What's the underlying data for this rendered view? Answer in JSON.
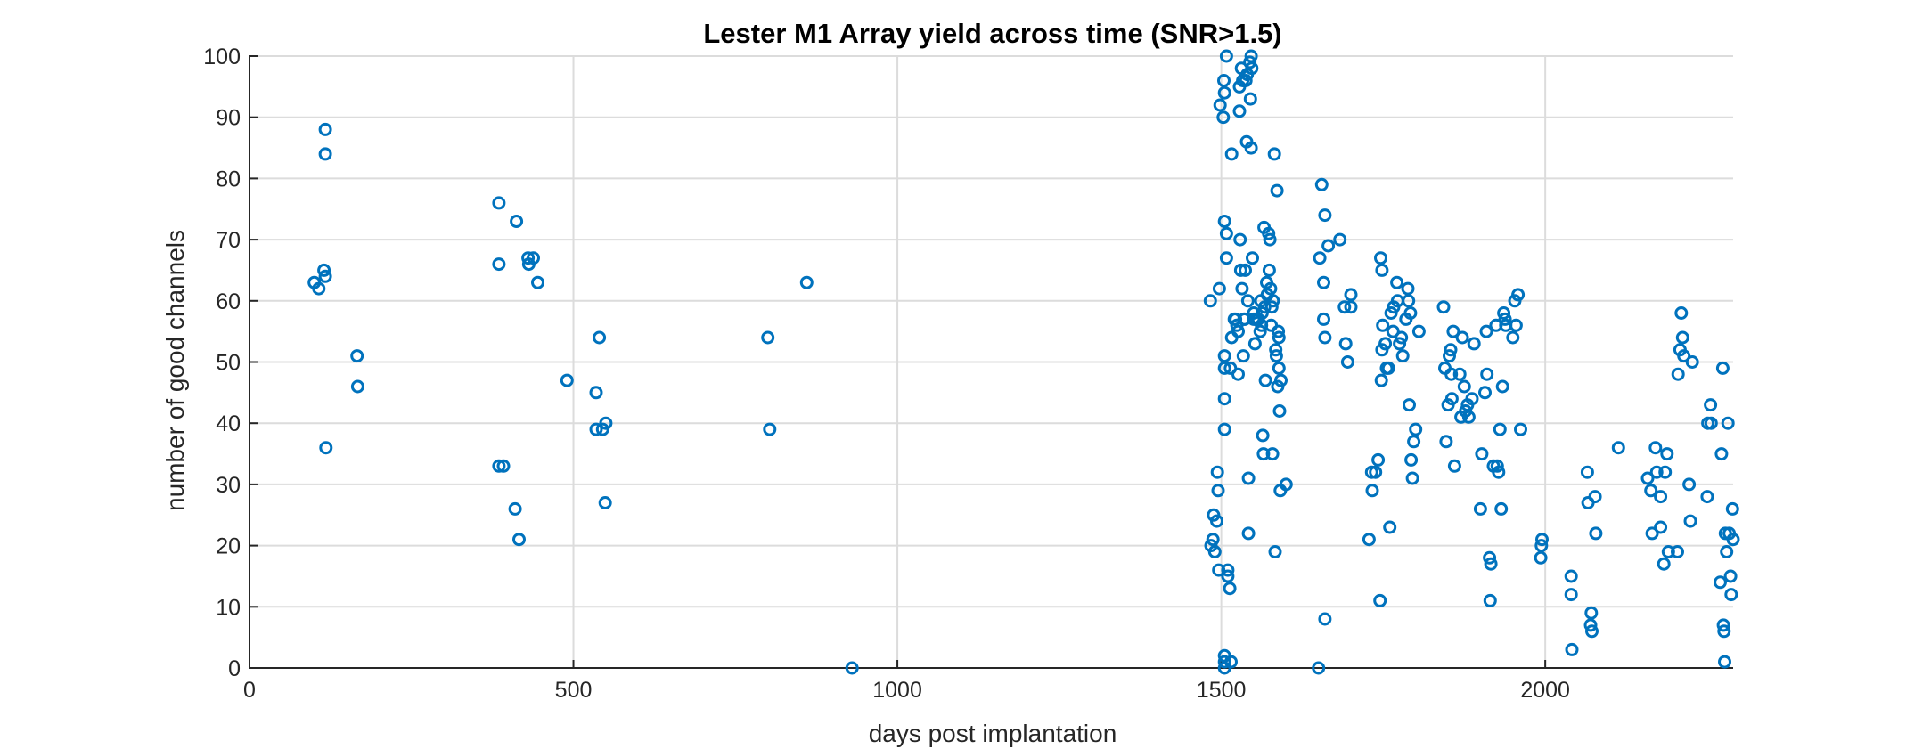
{
  "chart_data": {
    "type": "scatter",
    "title": "Lester M1 Array yield across time (SNR>1.5)",
    "xlabel": "days post implantation",
    "ylabel": "number of good channels",
    "xlim": [
      0,
      2290
    ],
    "ylim": [
      0,
      100
    ],
    "xticks": [
      0,
      500,
      1000,
      1500,
      2000
    ],
    "yticks": [
      0,
      10,
      20,
      30,
      40,
      50,
      60,
      70,
      80,
      90,
      100
    ],
    "grid": true,
    "legend": "none",
    "marker": "circle",
    "series": [
      {
        "color": "#0072BD",
        "points": [
          [
            100,
            63
          ],
          [
            107,
            62
          ],
          [
            115,
            65
          ],
          [
            117,
            64
          ],
          [
            117,
            88
          ],
          [
            117,
            84
          ],
          [
            118,
            36
          ],
          [
            166,
            51
          ],
          [
            167,
            46
          ],
          [
            385,
            76
          ],
          [
            385,
            66
          ],
          [
            385,
            33
          ],
          [
            392,
            33
          ],
          [
            410,
            26
          ],
          [
            412,
            73
          ],
          [
            416,
            21
          ],
          [
            430,
            67
          ],
          [
            431,
            66
          ],
          [
            438,
            67
          ],
          [
            445,
            63
          ],
          [
            490,
            47
          ],
          [
            535,
            45
          ],
          [
            535,
            39
          ],
          [
            540,
            54
          ],
          [
            545,
            39
          ],
          [
            549,
            27
          ],
          [
            550,
            40
          ],
          [
            800,
            54
          ],
          [
            803,
            39
          ],
          [
            860,
            63
          ],
          [
            930,
            0
          ],
          [
            1483,
            60
          ],
          [
            1484,
            20
          ],
          [
            1487,
            21
          ],
          [
            1488,
            25
          ],
          [
            1490,
            19
          ],
          [
            1493,
            24
          ],
          [
            1494,
            32
          ],
          [
            1495,
            29
          ],
          [
            1496,
            16
          ],
          [
            1497,
            62
          ],
          [
            1498,
            92
          ],
          [
            1503,
            90
          ],
          [
            1504,
            96
          ],
          [
            1505,
            94
          ],
          [
            1505,
            73
          ],
          [
            1505,
            39
          ],
          [
            1505,
            44
          ],
          [
            1505,
            49
          ],
          [
            1505,
            51
          ],
          [
            1505,
            2
          ],
          [
            1505,
            1
          ],
          [
            1505,
            0
          ],
          [
            1508,
            100
          ],
          [
            1508,
            71
          ],
          [
            1508,
            67
          ],
          [
            1510,
            16
          ],
          [
            1510,
            15
          ],
          [
            1513,
            13
          ],
          [
            1514,
            49
          ],
          [
            1515,
            1
          ],
          [
            1516,
            54
          ],
          [
            1516,
            84
          ],
          [
            1520,
            57
          ],
          [
            1522,
            57
          ],
          [
            1524,
            56
          ],
          [
            1526,
            48
          ],
          [
            1526,
            55
          ],
          [
            1528,
            91
          ],
          [
            1528,
            95
          ],
          [
            1529,
            70
          ],
          [
            1530,
            65
          ],
          [
            1531,
            98
          ],
          [
            1532,
            62
          ],
          [
            1533,
            96
          ],
          [
            1534,
            51
          ],
          [
            1535,
            57
          ],
          [
            1536,
            57
          ],
          [
            1537,
            65
          ],
          [
            1538,
            96
          ],
          [
            1539,
            86
          ],
          [
            1540,
            97
          ],
          [
            1541,
            60
          ],
          [
            1542,
            31
          ],
          [
            1542,
            22
          ],
          [
            1544,
            99
          ],
          [
            1545,
            93
          ],
          [
            1546,
            85
          ],
          [
            1546,
            100
          ],
          [
            1547,
            98
          ],
          [
            1548,
            67
          ],
          [
            1550,
            58
          ],
          [
            1550,
            57
          ],
          [
            1552,
            53
          ],
          [
            1553,
            57
          ],
          [
            1555,
            57
          ],
          [
            1557,
            57
          ],
          [
            1560,
            55
          ],
          [
            1561,
            60
          ],
          [
            1562,
            56
          ],
          [
            1563,
            58
          ],
          [
            1564,
            38
          ],
          [
            1565,
            35
          ],
          [
            1566,
            72
          ],
          [
            1567,
            59
          ],
          [
            1568,
            47
          ],
          [
            1570,
            63
          ],
          [
            1571,
            61
          ],
          [
            1573,
            71
          ],
          [
            1574,
            65
          ],
          [
            1575,
            70
          ],
          [
            1576,
            62
          ],
          [
            1577,
            56
          ],
          [
            1578,
            59
          ],
          [
            1579,
            35
          ],
          [
            1580,
            60
          ],
          [
            1582,
            84
          ],
          [
            1583,
            19
          ],
          [
            1584,
            52
          ],
          [
            1585,
            51
          ],
          [
            1586,
            78
          ],
          [
            1587,
            46
          ],
          [
            1588,
            55
          ],
          [
            1589,
            54
          ],
          [
            1589,
            49
          ],
          [
            1590,
            42
          ],
          [
            1591,
            29
          ],
          [
            1592,
            47
          ],
          [
            1600,
            30
          ],
          [
            1650,
            0
          ],
          [
            1652,
            67
          ],
          [
            1655,
            79
          ],
          [
            1658,
            57
          ],
          [
            1658,
            63
          ],
          [
            1660,
            74
          ],
          [
            1660,
            8
          ],
          [
            1660,
            54
          ],
          [
            1665,
            69
          ],
          [
            1683,
            70
          ],
          [
            1690,
            59
          ],
          [
            1692,
            53
          ],
          [
            1695,
            50
          ],
          [
            1700,
            59
          ],
          [
            1700,
            61
          ],
          [
            1728,
            21
          ],
          [
            1732,
            32
          ],
          [
            1733,
            29
          ],
          [
            1738,
            32
          ],
          [
            1742,
            34
          ],
          [
            1745,
            11
          ],
          [
            1746,
            67
          ],
          [
            1747,
            47
          ],
          [
            1748,
            65
          ],
          [
            1748,
            52
          ],
          [
            1749,
            56
          ],
          [
            1753,
            53
          ],
          [
            1755,
            49
          ],
          [
            1758,
            49
          ],
          [
            1760,
            23
          ],
          [
            1762,
            58
          ],
          [
            1765,
            55
          ],
          [
            1766,
            59
          ],
          [
            1771,
            63
          ],
          [
            1772,
            60
          ],
          [
            1775,
            53
          ],
          [
            1778,
            54
          ],
          [
            1780,
            51
          ],
          [
            1785,
            57
          ],
          [
            1788,
            62
          ],
          [
            1789,
            60
          ],
          [
            1790,
            43
          ],
          [
            1792,
            58
          ],
          [
            1793,
            34
          ],
          [
            1795,
            31
          ],
          [
            1797,
            37
          ],
          [
            1800,
            39
          ],
          [
            1805,
            55
          ],
          [
            1843,
            59
          ],
          [
            1845,
            49
          ],
          [
            1847,
            37
          ],
          [
            1850,
            43
          ],
          [
            1852,
            51
          ],
          [
            1854,
            52
          ],
          [
            1855,
            48
          ],
          [
            1856,
            44
          ],
          [
            1858,
            55
          ],
          [
            1860,
            33
          ],
          [
            1868,
            48
          ],
          [
            1870,
            41
          ],
          [
            1872,
            54
          ],
          [
            1875,
            46
          ],
          [
            1877,
            42
          ],
          [
            1880,
            43
          ],
          [
            1882,
            41
          ],
          [
            1887,
            44
          ],
          [
            1890,
            53
          ],
          [
            1900,
            26
          ],
          [
            1902,
            35
          ],
          [
            1907,
            45
          ],
          [
            1909,
            55
          ],
          [
            1910,
            48
          ],
          [
            1914,
            18
          ],
          [
            1915,
            11
          ],
          [
            1916,
            17
          ],
          [
            1920,
            33
          ],
          [
            1924,
            56
          ],
          [
            1926,
            33
          ],
          [
            1928,
            32
          ],
          [
            1930,
            39
          ],
          [
            1932,
            26
          ],
          [
            1934,
            46
          ],
          [
            1936,
            58
          ],
          [
            1938,
            57
          ],
          [
            1939,
            56
          ],
          [
            1950,
            54
          ],
          [
            1953,
            60
          ],
          [
            1955,
            56
          ],
          [
            1958,
            61
          ],
          [
            1962,
            39
          ],
          [
            1993,
            18
          ],
          [
            1994,
            20
          ],
          [
            1995,
            21
          ],
          [
            2040,
            15
          ],
          [
            2040,
            12
          ],
          [
            2041,
            3
          ],
          [
            2065,
            32
          ],
          [
            2066,
            27
          ],
          [
            2070,
            7
          ],
          [
            2071,
            9
          ],
          [
            2072,
            6
          ],
          [
            2077,
            28
          ],
          [
            2078,
            22
          ],
          [
            2113,
            36
          ],
          [
            2158,
            31
          ],
          [
            2163,
            29
          ],
          [
            2165,
            22
          ],
          [
            2170,
            36
          ],
          [
            2172,
            32
          ],
          [
            2178,
            28
          ],
          [
            2178,
            23
          ],
          [
            2183,
            17
          ],
          [
            2185,
            32
          ],
          [
            2188,
            35
          ],
          [
            2190,
            19
          ],
          [
            2204,
            19
          ],
          [
            2205,
            48
          ],
          [
            2208,
            52
          ],
          [
            2210,
            58
          ],
          [
            2212,
            54
          ],
          [
            2214,
            51
          ],
          [
            2222,
            30
          ],
          [
            2224,
            24
          ],
          [
            2227,
            50
          ],
          [
            2250,
            28
          ],
          [
            2251,
            40
          ],
          [
            2255,
            43
          ],
          [
            2256,
            40
          ],
          [
            2270,
            14
          ],
          [
            2272,
            35
          ],
          [
            2274,
            49
          ],
          [
            2275,
            7
          ],
          [
            2276,
            6
          ],
          [
            2277,
            1
          ],
          [
            2278,
            22
          ],
          [
            2280,
            19
          ],
          [
            2282,
            40
          ],
          [
            2284,
            22
          ],
          [
            2286,
            15
          ],
          [
            2287,
            12
          ],
          [
            2289,
            26
          ],
          [
            2290,
            21
          ]
        ]
      }
    ]
  }
}
